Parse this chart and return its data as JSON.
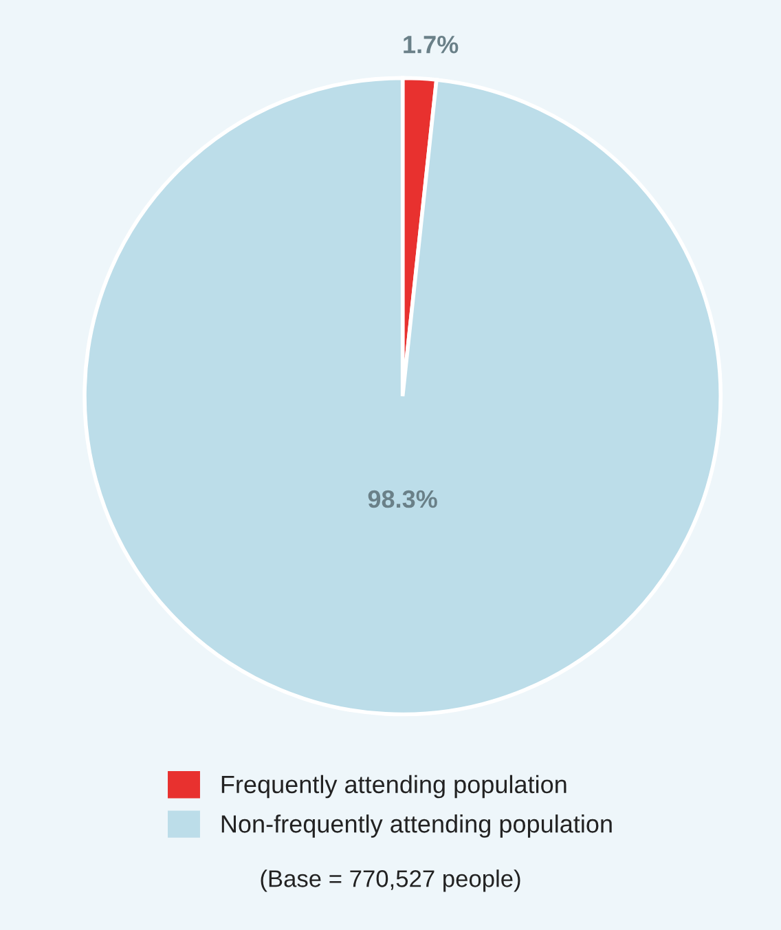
{
  "chart_data": {
    "type": "pie",
    "categories": [
      "Frequently attending population",
      "Non-frequently attending population"
    ],
    "values": [
      1.7,
      98.3
    ],
    "colors": [
      "#e8312f",
      "#bcdde9"
    ],
    "value_labels": [
      "1.7%",
      "98.3%"
    ],
    "legend": "bottom",
    "annotations": [
      "(Base = 770,527 people)"
    ]
  }
}
